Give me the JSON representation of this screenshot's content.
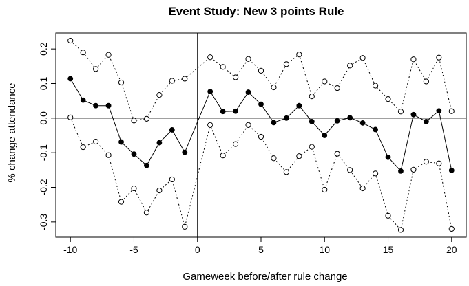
{
  "chart_data": {
    "type": "line",
    "title": "Event Study: New 3 points Rule",
    "xlabel": "Gameweek before/after rule change",
    "ylabel": "% change attendance",
    "xlim": [
      -10,
      20
    ],
    "ylim": [
      -0.32,
      0.22
    ],
    "xticks": [
      -10,
      -5,
      0,
      5,
      10,
      15,
      20
    ],
    "xtick_labels": [
      "-10",
      "-5",
      "0",
      "5",
      "10",
      "15",
      "20"
    ],
    "yticks": [
      -0.3,
      -0.2,
      -0.1,
      0.0,
      0.1,
      0.2
    ],
    "ytick_labels": [
      "-0.3",
      "-0.2",
      "-0.1",
      "0.0",
      "0.1",
      "0.2"
    ],
    "reference_lines": {
      "horizontal_y": 0,
      "vertical_x": 0
    },
    "x": [
      -10,
      -9,
      -8,
      -7,
      -6,
      -5,
      -4,
      -3,
      -2,
      -1,
      1,
      2,
      3,
      4,
      5,
      6,
      7,
      8,
      9,
      10,
      11,
      12,
      13,
      14,
      15,
      16,
      17,
      18,
      19,
      20
    ],
    "series": [
      {
        "role": "estimate",
        "style": "solid",
        "marker": "filled-circle",
        "values": [
          0.114,
          0.052,
          0.036,
          0.036,
          -0.069,
          -0.104,
          -0.137,
          -0.071,
          -0.034,
          -0.099,
          0.077,
          0.019,
          0.02,
          0.075,
          0.04,
          -0.013,
          0.0,
          0.036,
          -0.01,
          -0.05,
          -0.008,
          0.001,
          -0.014,
          -0.033,
          -0.113,
          -0.153,
          0.01,
          -0.01,
          0.021,
          -0.151
        ]
      },
      {
        "role": "upper-ci",
        "style": "dotted",
        "marker": "open-circle",
        "values": [
          0.224,
          0.19,
          0.142,
          0.183,
          0.103,
          -0.007,
          -0.002,
          0.067,
          0.108,
          0.114,
          0.176,
          0.148,
          0.118,
          0.171,
          0.137,
          0.089,
          0.156,
          0.184,
          0.063,
          0.106,
          0.087,
          0.152,
          0.174,
          0.094,
          0.055,
          0.019,
          0.17,
          0.106,
          0.175,
          0.02
        ]
      },
      {
        "role": "lower-ci",
        "style": "dotted",
        "marker": "open-circle",
        "values": [
          0.002,
          -0.084,
          -0.068,
          -0.107,
          -0.242,
          -0.203,
          -0.273,
          -0.209,
          -0.177,
          -0.314,
          -0.02,
          -0.108,
          -0.075,
          -0.02,
          -0.054,
          -0.116,
          -0.156,
          -0.11,
          -0.083,
          -0.207,
          -0.103,
          -0.15,
          -0.203,
          -0.16,
          -0.282,
          -0.323,
          -0.149,
          -0.126,
          -0.131,
          -0.32
        ]
      }
    ]
  }
}
